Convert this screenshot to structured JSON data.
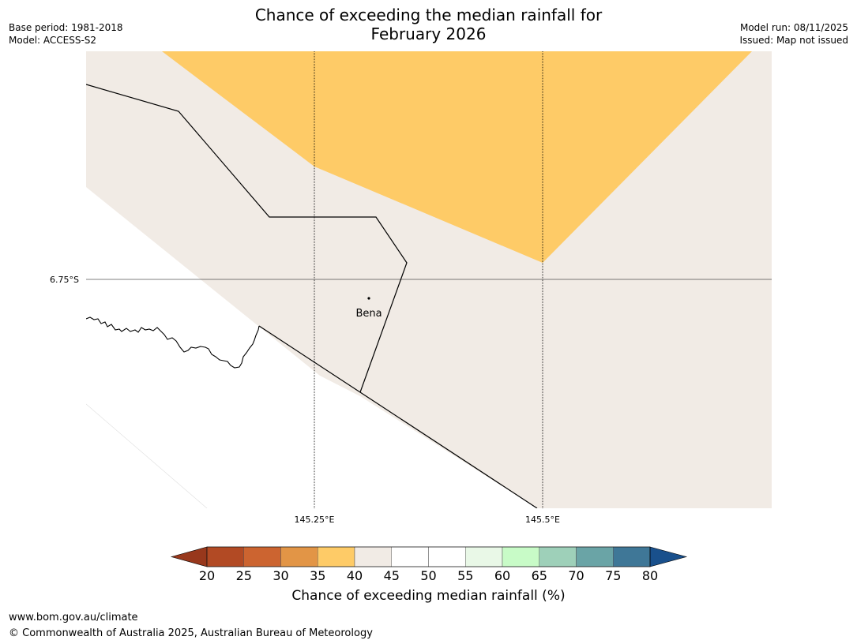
{
  "title_line1": "Chance of exceeding the median rainfall for",
  "title_line2": "February 2026",
  "meta": {
    "base_period": "Base period: 1981-2018",
    "model": "Model: ACCESS-S2",
    "model_run": "Model run: 08/11/2025",
    "issued": "Issued: Map not issued"
  },
  "map": {
    "lat_label": "6.75°S",
    "lon_labels": [
      "145.25°E",
      "145.5°E"
    ],
    "place_name": "Bena",
    "colors": {
      "category_35_40": "#fecb67",
      "category_40_45": "#f1ebe5",
      "gridline": "#000000",
      "border": "#000000"
    }
  },
  "colorbar": {
    "ticks": [
      "20",
      "25",
      "30",
      "35",
      "40",
      "45",
      "50",
      "55",
      "60",
      "65",
      "70",
      "75",
      "80"
    ],
    "colors": [
      "#98381c",
      "#b24a24",
      "#cc6430",
      "#e29546",
      "#fecb67",
      "#f1ebe5",
      "#ffffff",
      "#ffffff",
      "#e9f8e7",
      "#c8fbc7",
      "#9ed0b9",
      "#6aa4a6",
      "#3f7797",
      "#19508c"
    ],
    "label": "Chance of exceeding median rainfall (%)"
  },
  "footer": {
    "url": "www.bom.gov.au/climate",
    "copyright": "© Commonwealth of Australia 2025, Australian Bureau of Meteorology"
  }
}
